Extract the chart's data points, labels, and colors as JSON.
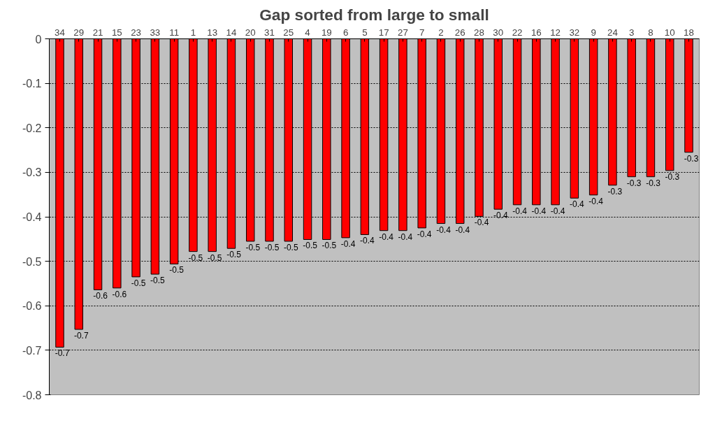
{
  "chart_data": {
    "type": "bar",
    "title": "Gap sorted from large to small",
    "categories": [
      "34",
      "29",
      "21",
      "15",
      "23",
      "33",
      "11",
      "1",
      "13",
      "14",
      "20",
      "31",
      "25",
      "4",
      "19",
      "6",
      "5",
      "17",
      "27",
      "7",
      "2",
      "26",
      "28",
      "30",
      "22",
      "16",
      "12",
      "32",
      "9",
      "24",
      "3",
      "8",
      "10",
      "18"
    ],
    "values": [
      -0.693,
      -0.653,
      -0.564,
      -0.56,
      -0.535,
      -0.529,
      -0.506,
      -0.478,
      -0.478,
      -0.471,
      -0.455,
      -0.455,
      -0.455,
      -0.451,
      -0.451,
      -0.447,
      -0.44,
      -0.431,
      -0.431,
      -0.425,
      -0.415,
      -0.415,
      -0.399,
      -0.383,
      -0.373,
      -0.373,
      -0.373,
      -0.358,
      -0.351,
      -0.329,
      -0.31,
      -0.31,
      -0.296,
      -0.255
    ],
    "value_labels": [
      "-0.7",
      "-0.7",
      "-0.6",
      "-0.6",
      "-0.5",
      "-0.5",
      "-0.5",
      "-0.5",
      "-0.5",
      "-0.5",
      "-0.5",
      "-0.5",
      "-0.5",
      "-0.5",
      "-0.5",
      "-0.4",
      "-0.4",
      "-0.4",
      "-0.4",
      "-0.4",
      "-0.4",
      "-0.4",
      "-0.4",
      "-0.4",
      "-0.4",
      "-0.4",
      "-0.4",
      "-0.4",
      "-0.4",
      "-0.3",
      "-0.3",
      "-0.3",
      "-0.3",
      "-0.3"
    ],
    "color": "#ff0000",
    "ylim": [
      -0.8,
      0
    ],
    "yticks": [
      0,
      -0.1,
      -0.2,
      -0.3,
      -0.4,
      -0.5,
      -0.6,
      -0.7,
      -0.8
    ],
    "grid": "y"
  }
}
